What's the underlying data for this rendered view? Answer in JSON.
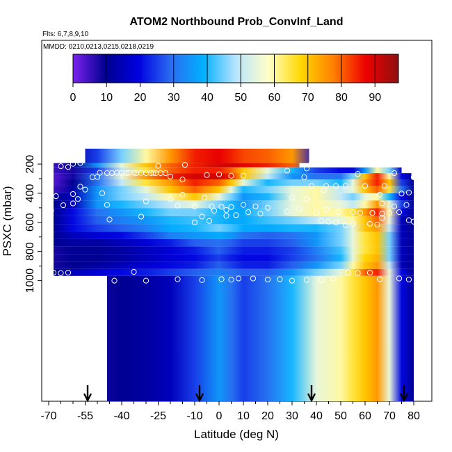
{
  "chart_data": {
    "type": "heatmap",
    "title": "ATOM2 Northbound Prob_ConvInf_Land",
    "subtitle_flights": "Flts: 6,7,8,9,10",
    "subtitle_dates": "MMDD: 0210,0213,0215,0218,0219",
    "xlabel": "Latitude (deg N)",
    "ylabel": "PSXC (mbar)",
    "xlim": [
      -70,
      81
    ],
    "ylim": [
      1000,
      140
    ],
    "y_reversed": true,
    "grid": false,
    "x_ticks": [
      -70,
      -55,
      -40,
      -25,
      -10,
      0,
      10,
      20,
      30,
      40,
      50,
      60,
      70,
      80
    ],
    "x_tick_labels": [
      "-70",
      "-55",
      "-40",
      "-25",
      "-10",
      "0",
      "10",
      "20",
      "30",
      "40",
      "50",
      "60",
      "70",
      "80"
    ],
    "y_ticks": [
      200,
      400,
      600,
      800,
      1000
    ],
    "y_tick_labels": [
      "200",
      "400",
      "600",
      "800",
      "1000"
    ],
    "colorbar": {
      "range": [
        0,
        97
      ],
      "ticks": [
        0,
        10,
        20,
        30,
        40,
        50,
        60,
        70,
        80,
        90
      ],
      "tick_labels": [
        "0",
        "10",
        "20",
        "30",
        "40",
        "50",
        "60",
        "70",
        "80",
        "90"
      ],
      "colors": [
        "#7a22ee",
        "#00008f",
        "#0000e0",
        "#2a6cf0",
        "#00b0ff",
        "#b8e4ff",
        "#ffffc8",
        "#ffd800",
        "#ff8000",
        "#ee0000",
        "#8e1010"
      ]
    },
    "pressure_levels": [
      180,
      205,
      240,
      285,
      325,
      375,
      425,
      475,
      530,
      585,
      640,
      690,
      740,
      790,
      845,
      895,
      945,
      990
    ],
    "level_extents": [
      [
        -55,
        37
      ],
      [
        -68,
        33
      ],
      [
        -68,
        75
      ],
      [
        -68,
        79
      ],
      [
        -68,
        80
      ],
      [
        -68,
        80
      ],
      [
        -68,
        80
      ],
      [
        -68,
        80
      ],
      [
        -68,
        80
      ],
      [
        -68,
        80
      ],
      [
        -68,
        80
      ],
      [
        -68,
        80
      ],
      [
        -68,
        80
      ],
      [
        -68,
        80
      ],
      [
        -68,
        80
      ],
      [
        -68,
        80
      ],
      [
        -68,
        80
      ],
      [
        -46,
        80
      ]
    ],
    "profile_lat": [
      -68,
      -60,
      -50,
      -40,
      -30,
      -20,
      -10,
      0,
      5,
      10,
      20,
      30,
      40,
      50,
      55,
      60,
      65,
      70,
      75,
      80
    ],
    "profile_values": [
      [
        8,
        12,
        25,
        45,
        60,
        75,
        85,
        88,
        85,
        82,
        80,
        75,
        20,
        10,
        8,
        8,
        8,
        8,
        8,
        8
      ],
      [
        5,
        10,
        35,
        55,
        70,
        80,
        85,
        90,
        90,
        88,
        85,
        80,
        30,
        15,
        12,
        10,
        10,
        12,
        8,
        5
      ],
      [
        5,
        8,
        25,
        50,
        65,
        80,
        85,
        85,
        80,
        70,
        55,
        40,
        25,
        20,
        20,
        35,
        60,
        45,
        15,
        10
      ],
      [
        3,
        8,
        30,
        55,
        75,
        85,
        90,
        90,
        85,
        70,
        50,
        35,
        30,
        30,
        45,
        70,
        85,
        60,
        20,
        10
      ],
      [
        3,
        10,
        30,
        50,
        65,
        75,
        85,
        80,
        70,
        55,
        40,
        45,
        45,
        40,
        55,
        75,
        85,
        70,
        25,
        10
      ],
      [
        5,
        12,
        35,
        45,
        55,
        70,
        80,
        70,
        55,
        40,
        45,
        55,
        60,
        50,
        55,
        70,
        80,
        65,
        30,
        10
      ],
      [
        10,
        15,
        35,
        45,
        50,
        60,
        70,
        55,
        45,
        35,
        40,
        55,
        60,
        50,
        45,
        55,
        60,
        40,
        20,
        10
      ],
      [
        10,
        15,
        35,
        40,
        45,
        50,
        55,
        45,
        40,
        35,
        45,
        55,
        60,
        55,
        50,
        60,
        75,
        55,
        25,
        10
      ],
      [
        10,
        20,
        30,
        35,
        40,
        45,
        45,
        40,
        38,
        38,
        45,
        55,
        60,
        60,
        65,
        75,
        85,
        60,
        20,
        10
      ],
      [
        10,
        20,
        28,
        32,
        35,
        40,
        42,
        40,
        38,
        38,
        42,
        45,
        50,
        55,
        60,
        70,
        80,
        55,
        15,
        10
      ],
      [
        10,
        20,
        25,
        28,
        32,
        38,
        40,
        45,
        42,
        38,
        38,
        40,
        40,
        45,
        55,
        70,
        75,
        50,
        15,
        10
      ],
      [
        10,
        15,
        18,
        20,
        25,
        32,
        35,
        38,
        35,
        30,
        28,
        30,
        35,
        45,
        55,
        65,
        70,
        45,
        15,
        10
      ],
      [
        10,
        12,
        12,
        15,
        18,
        22,
        28,
        30,
        28,
        25,
        25,
        28,
        35,
        45,
        55,
        65,
        70,
        45,
        15,
        10
      ],
      [
        8,
        10,
        10,
        12,
        15,
        18,
        22,
        28,
        25,
        22,
        22,
        25,
        32,
        42,
        55,
        65,
        70,
        45,
        15,
        10
      ],
      [
        8,
        10,
        10,
        12,
        15,
        18,
        20,
        25,
        22,
        20,
        20,
        25,
        30,
        40,
        55,
        68,
        72,
        45,
        15,
        10
      ],
      [
        8,
        10,
        12,
        15,
        18,
        20,
        22,
        28,
        25,
        22,
        22,
        28,
        35,
        45,
        60,
        70,
        75,
        50,
        15,
        10
      ],
      [
        10,
        15,
        18,
        20,
        22,
        25,
        28,
        32,
        30,
        28,
        28,
        35,
        45,
        55,
        65,
        80,
        85,
        55,
        20,
        10
      ],
      [
        5,
        5,
        8,
        10,
        12,
        15,
        25,
        35,
        30,
        25,
        30,
        40,
        55,
        60,
        65,
        70,
        75,
        55,
        20,
        10
      ]
    ],
    "arrows_lat": [
      -54,
      -8,
      38,
      76
    ],
    "circle_markers": [
      [
        -57,
        192
      ],
      [
        -60,
        198
      ],
      [
        -65,
        215
      ],
      [
        -62,
        220
      ],
      [
        -25,
        212
      ],
      [
        -14,
        205
      ],
      [
        38,
        192
      ],
      [
        36,
        230
      ],
      [
        -49,
        260
      ],
      [
        -46,
        262
      ],
      [
        -44,
        262
      ],
      [
        -42,
        260
      ],
      [
        -40,
        262
      ],
      [
        -38,
        262
      ],
      [
        -37,
        260
      ],
      [
        -35,
        260
      ],
      [
        -34,
        262
      ],
      [
        -32,
        260
      ],
      [
        -30,
        262
      ],
      [
        -28,
        262
      ],
      [
        -26,
        262
      ],
      [
        -24,
        262
      ],
      [
        -22,
        262
      ],
      [
        -5,
        275
      ],
      [
        10,
        280
      ],
      [
        -52,
        290
      ],
      [
        -50,
        288
      ],
      [
        -27,
        260
      ],
      [
        -20,
        285
      ],
      [
        -15,
        306
      ],
      [
        0,
        270
      ],
      [
        5,
        280
      ],
      [
        28,
        245
      ],
      [
        35,
        290
      ],
      [
        57,
        268
      ],
      [
        72,
        262
      ],
      [
        80,
        290
      ],
      [
        38,
        350
      ],
      [
        44,
        350
      ],
      [
        52,
        350
      ],
      [
        48,
        350
      ],
      [
        60,
        350
      ],
      [
        68,
        350
      ],
      [
        -57,
        355
      ],
      [
        -55,
        375
      ],
      [
        -60,
        405
      ],
      [
        -48,
        400
      ],
      [
        43,
        380
      ],
      [
        66,
        410
      ],
      [
        75,
        402
      ],
      [
        78,
        395
      ],
      [
        -67,
        420
      ],
      [
        -58,
        440
      ],
      [
        -30,
        455
      ],
      [
        -15,
        410
      ],
      [
        -20,
        440
      ],
      [
        -6,
        430
      ],
      [
        30,
        430
      ],
      [
        36,
        440
      ],
      [
        -60,
        470
      ],
      [
        -64,
        482
      ],
      [
        -46,
        480
      ],
      [
        -17,
        485
      ],
      [
        -10,
        490
      ],
      [
        -3,
        490
      ],
      [
        1,
        493
      ],
      [
        5,
        495
      ],
      [
        10,
        480
      ],
      [
        15,
        490
      ],
      [
        20,
        500
      ],
      [
        33,
        505
      ],
      [
        44,
        512
      ],
      [
        67,
        470
      ],
      [
        72,
        490
      ],
      [
        77,
        480
      ],
      [
        -69,
        520
      ],
      [
        -2,
        520
      ],
      [
        3,
        515
      ],
      [
        12,
        530
      ],
      [
        17,
        540
      ],
      [
        28,
        525
      ],
      [
        40,
        535
      ],
      [
        49,
        530
      ],
      [
        55,
        530
      ],
      [
        58,
        535
      ],
      [
        63,
        535
      ],
      [
        67,
        540
      ],
      [
        70,
        535
      ],
      [
        74,
        530
      ],
      [
        -32,
        560
      ],
      [
        -7,
        560
      ],
      [
        3,
        555
      ],
      [
        7,
        550
      ],
      [
        -45,
        580
      ],
      [
        -4,
        590
      ],
      [
        -10,
        600
      ],
      [
        42,
        590
      ],
      [
        45,
        595
      ],
      [
        48,
        600
      ],
      [
        55,
        610
      ],
      [
        62,
        610
      ],
      [
        65,
        615
      ],
      [
        78,
        585
      ],
      [
        80,
        595
      ],
      [
        52,
        620
      ],
      [
        67,
        570
      ],
      [
        -68,
        945
      ],
      [
        -65,
        948
      ],
      [
        -62,
        945
      ],
      [
        -35,
        940
      ],
      [
        53,
        945
      ],
      [
        57,
        948
      ],
      [
        62,
        945
      ],
      [
        -30,
        1000
      ],
      [
        -17,
        990
      ],
      [
        -7,
        996
      ],
      [
        1,
        990
      ],
      [
        5,
        993
      ],
      [
        8,
        985
      ],
      [
        14,
        985
      ],
      [
        20,
        992
      ],
      [
        25,
        990
      ],
      [
        30,
        1000
      ],
      [
        36,
        995
      ],
      [
        42,
        995
      ],
      [
        47,
        985
      ],
      [
        66,
        990
      ],
      [
        74,
        985
      ],
      [
        78,
        992
      ],
      [
        -43,
        1000
      ]
    ]
  }
}
